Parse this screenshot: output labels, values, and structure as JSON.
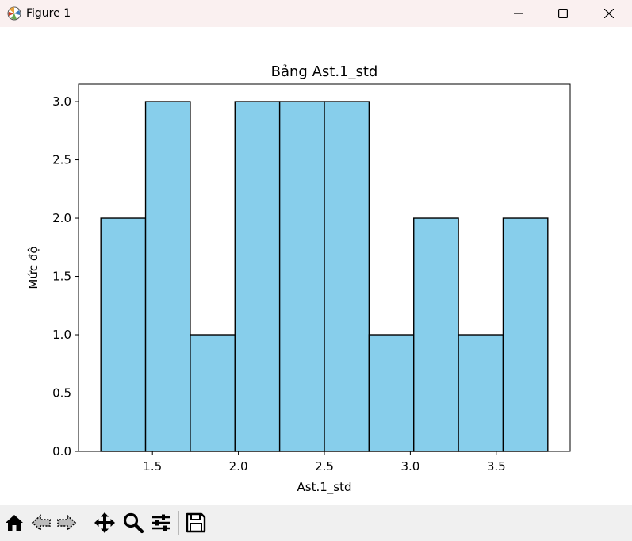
{
  "window": {
    "title": "Figure 1",
    "controls": [
      "minimize-icon",
      "maximize-icon",
      "close-icon"
    ]
  },
  "chart_data": {
    "type": "bar",
    "title": "Bảng Ast.1_std",
    "xlabel": "Ast.1_std",
    "ylabel": "Mức độ",
    "bin_edges": [
      1.2,
      1.46,
      1.72,
      1.98,
      2.24,
      2.5,
      2.76,
      3.02,
      3.28,
      3.54,
      3.8
    ],
    "values": [
      2,
      3,
      1,
      3,
      3,
      3,
      1,
      2,
      1,
      2
    ],
    "xlim": [
      1.07,
      3.93
    ],
    "ylim": [
      0,
      3.15
    ],
    "xticks": [
      1.5,
      2.0,
      2.5,
      3.0,
      3.5
    ],
    "xtick_labels": [
      "1.5",
      "2.0",
      "2.5",
      "3.0",
      "3.5"
    ],
    "yticks": [
      0,
      0.5,
      1,
      1.5,
      2,
      2.5,
      3
    ],
    "ytick_labels": [
      "0.0",
      "0.5",
      "1.0",
      "1.5",
      "2.0",
      "2.5",
      "3.0"
    ],
    "bar_color": "#87ceeb",
    "edge_color": "#000000",
    "grid": false
  },
  "toolbar": {
    "tools": [
      "home-icon",
      "back-icon",
      "forward-icon",
      "pan-icon",
      "zoom-icon",
      "configure-subplots-icon",
      "save-icon"
    ]
  }
}
